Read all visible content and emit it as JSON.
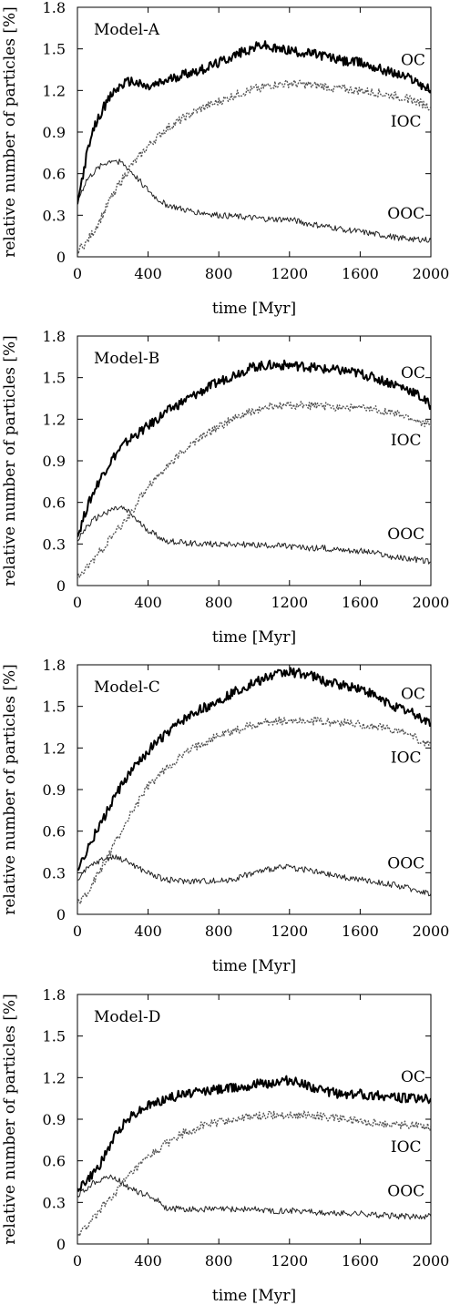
{
  "chart_data": [
    {
      "type": "line",
      "title": "Model-A",
      "xlabel": "time [Myr]",
      "ylabel": "relative number of particles [%]",
      "xlim": [
        0,
        2000
      ],
      "ylim": [
        0,
        1.8
      ],
      "xticks": [
        "0",
        "400",
        "800",
        "1200",
        "1600",
        "2000"
      ],
      "yticks": [
        "0",
        "0.3",
        "0.6",
        "0.9",
        "1.2",
        "1.5",
        "1.8"
      ],
      "grid": false,
      "series": [
        {
          "name": "OC",
          "style": "solid-thick",
          "color": "#000000",
          "x": [
            0,
            50,
            100,
            150,
            200,
            250,
            300,
            400,
            500,
            600,
            700,
            800,
            900,
            1000,
            1050,
            1100,
            1200,
            1300,
            1400,
            1500,
            1600,
            1700,
            1800,
            1900,
            2000
          ],
          "y": [
            0.38,
            0.72,
            0.95,
            1.08,
            1.18,
            1.24,
            1.27,
            1.22,
            1.27,
            1.32,
            1.35,
            1.4,
            1.46,
            1.51,
            1.53,
            1.5,
            1.49,
            1.47,
            1.45,
            1.41,
            1.4,
            1.36,
            1.32,
            1.28,
            1.2
          ]
        },
        {
          "name": "IOC",
          "style": "dotted",
          "color": "#555555",
          "x": [
            0,
            50,
            100,
            150,
            200,
            250,
            300,
            350,
            400,
            500,
            600,
            700,
            800,
            900,
            1000,
            1100,
            1200,
            1300,
            1400,
            1500,
            1600,
            1700,
            1800,
            1900,
            2000
          ],
          "y": [
            0.05,
            0.1,
            0.2,
            0.32,
            0.45,
            0.55,
            0.65,
            0.72,
            0.8,
            0.92,
            1.0,
            1.07,
            1.12,
            1.17,
            1.21,
            1.24,
            1.25,
            1.24,
            1.23,
            1.21,
            1.2,
            1.18,
            1.16,
            1.13,
            1.08
          ]
        },
        {
          "name": "OOC",
          "style": "thin",
          "color": "#222222",
          "x": [
            0,
            50,
            100,
            150,
            200,
            250,
            300,
            350,
            400,
            450,
            500,
            600,
            700,
            800,
            900,
            1000,
            1100,
            1200,
            1300,
            1400,
            1500,
            1600,
            1700,
            1800,
            1900,
            2000
          ],
          "y": [
            0.4,
            0.55,
            0.62,
            0.67,
            0.7,
            0.68,
            0.62,
            0.55,
            0.48,
            0.42,
            0.38,
            0.34,
            0.32,
            0.3,
            0.29,
            0.28,
            0.27,
            0.27,
            0.24,
            0.22,
            0.2,
            0.18,
            0.16,
            0.14,
            0.13,
            0.12
          ]
        }
      ]
    },
    {
      "type": "line",
      "title": "Model-B",
      "xlabel": "time [Myr]",
      "ylabel": "relative number of particles [%]",
      "xlim": [
        0,
        2000
      ],
      "ylim": [
        0,
        1.8
      ],
      "xticks": [
        "0",
        "400",
        "800",
        "1200",
        "1600",
        "2000"
      ],
      "yticks": [
        "0",
        "0.3",
        "0.6",
        "0.9",
        "1.2",
        "1.5",
        "1.8"
      ],
      "grid": false,
      "series": [
        {
          "name": "OC",
          "style": "solid-thick",
          "color": "#000000",
          "x": [
            0,
            50,
            100,
            150,
            200,
            250,
            300,
            400,
            500,
            600,
            700,
            800,
            900,
            1000,
            1100,
            1200,
            1300,
            1400,
            1500,
            1600,
            1700,
            1800,
            1900,
            2000
          ],
          "y": [
            0.35,
            0.55,
            0.7,
            0.82,
            0.92,
            1.0,
            1.06,
            1.15,
            1.25,
            1.33,
            1.4,
            1.47,
            1.53,
            1.58,
            1.59,
            1.59,
            1.58,
            1.56,
            1.55,
            1.53,
            1.49,
            1.45,
            1.4,
            1.3
          ]
        },
        {
          "name": "IOC",
          "style": "dotted",
          "color": "#555555",
          "x": [
            0,
            50,
            100,
            150,
            200,
            250,
            300,
            350,
            400,
            500,
            600,
            700,
            800,
            900,
            1000,
            1100,
            1200,
            1300,
            1400,
            1500,
            1600,
            1700,
            1800,
            1900,
            2000
          ],
          "y": [
            0.05,
            0.12,
            0.2,
            0.28,
            0.36,
            0.43,
            0.52,
            0.62,
            0.72,
            0.85,
            0.97,
            1.07,
            1.15,
            1.21,
            1.26,
            1.29,
            1.3,
            1.3,
            1.29,
            1.29,
            1.28,
            1.27,
            1.24,
            1.2,
            1.15
          ]
        },
        {
          "name": "OOC",
          "style": "thin",
          "color": "#222222",
          "x": [
            0,
            50,
            100,
            150,
            200,
            250,
            300,
            350,
            400,
            450,
            500,
            600,
            700,
            800,
            900,
            1000,
            1100,
            1200,
            1300,
            1400,
            1500,
            1600,
            1700,
            1800,
            1900,
            2000
          ],
          "y": [
            0.32,
            0.42,
            0.48,
            0.52,
            0.55,
            0.56,
            0.52,
            0.45,
            0.4,
            0.36,
            0.32,
            0.31,
            0.3,
            0.3,
            0.3,
            0.29,
            0.29,
            0.28,
            0.27,
            0.27,
            0.26,
            0.25,
            0.23,
            0.2,
            0.19,
            0.17
          ]
        }
      ]
    },
    {
      "type": "line",
      "title": "Model-C",
      "xlabel": "time [Myr]",
      "ylabel": "relative number of particles [%]",
      "xlim": [
        0,
        2000
      ],
      "ylim": [
        0,
        1.8
      ],
      "xticks": [
        "0",
        "400",
        "800",
        "1200",
        "1600",
        "2000"
      ],
      "yticks": [
        "0",
        "0.3",
        "0.6",
        "0.9",
        "1.2",
        "1.5",
        "1.8"
      ],
      "grid": false,
      "series": [
        {
          "name": "OC",
          "style": "solid-thick",
          "color": "#000000",
          "x": [
            0,
            50,
            100,
            150,
            200,
            250,
            300,
            400,
            500,
            600,
            700,
            800,
            900,
            1000,
            1100,
            1200,
            1300,
            1400,
            1500,
            1600,
            1700,
            1800,
            1900,
            2000
          ],
          "y": [
            0.32,
            0.45,
            0.58,
            0.7,
            0.82,
            0.93,
            1.02,
            1.18,
            1.3,
            1.4,
            1.48,
            1.54,
            1.61,
            1.67,
            1.72,
            1.75,
            1.73,
            1.68,
            1.65,
            1.63,
            1.56,
            1.5,
            1.45,
            1.38
          ]
        },
        {
          "name": "IOC",
          "style": "dotted",
          "color": "#555555",
          "x": [
            0,
            50,
            100,
            150,
            200,
            250,
            300,
            350,
            400,
            500,
            600,
            700,
            800,
            900,
            1000,
            1100,
            1200,
            1300,
            1400,
            1500,
            1600,
            1700,
            1800,
            1900,
            2000
          ],
          "y": [
            0.08,
            0.15,
            0.25,
            0.36,
            0.48,
            0.6,
            0.72,
            0.82,
            0.92,
            1.05,
            1.15,
            1.23,
            1.29,
            1.33,
            1.37,
            1.39,
            1.4,
            1.4,
            1.39,
            1.38,
            1.37,
            1.35,
            1.33,
            1.28,
            1.22
          ]
        },
        {
          "name": "OOC",
          "style": "thin",
          "color": "#222222",
          "x": [
            0,
            50,
            100,
            150,
            200,
            250,
            300,
            350,
            400,
            450,
            500,
            600,
            700,
            800,
            900,
            1000,
            1100,
            1200,
            1300,
            1400,
            1500,
            1600,
            1700,
            1800,
            1900,
            2000
          ],
          "y": [
            0.25,
            0.32,
            0.37,
            0.4,
            0.41,
            0.4,
            0.37,
            0.33,
            0.3,
            0.27,
            0.25,
            0.24,
            0.24,
            0.24,
            0.26,
            0.3,
            0.33,
            0.34,
            0.32,
            0.29,
            0.27,
            0.25,
            0.23,
            0.21,
            0.18,
            0.15
          ]
        }
      ]
    },
    {
      "type": "line",
      "title": "Model-D",
      "xlabel": "time [Myr]",
      "ylabel": "relative number of particles [%]",
      "xlim": [
        0,
        2000
      ],
      "ylim": [
        0,
        1.8
      ],
      "xticks": [
        "0",
        "400",
        "800",
        "1200",
        "1600",
        "2000"
      ],
      "yticks": [
        "0",
        "0.3",
        "0.6",
        "0.9",
        "1.2",
        "1.5",
        "1.8"
      ],
      "grid": false,
      "series": [
        {
          "name": "OC",
          "style": "solid-thick",
          "color": "#000000",
          "x": [
            0,
            50,
            100,
            150,
            200,
            250,
            300,
            400,
            500,
            600,
            700,
            800,
            900,
            1000,
            1100,
            1200,
            1300,
            1400,
            1500,
            1600,
            1700,
            1800,
            1900,
            2000
          ],
          "y": [
            0.4,
            0.45,
            0.52,
            0.62,
            0.75,
            0.85,
            0.92,
            1.0,
            1.05,
            1.08,
            1.1,
            1.12,
            1.13,
            1.15,
            1.16,
            1.18,
            1.15,
            1.1,
            1.08,
            1.08,
            1.07,
            1.06,
            1.05,
            1.05
          ]
        },
        {
          "name": "IOC",
          "style": "dotted",
          "color": "#555555",
          "x": [
            0,
            50,
            100,
            150,
            200,
            250,
            300,
            350,
            400,
            500,
            600,
            700,
            800,
            900,
            1000,
            1100,
            1200,
            1300,
            1400,
            1500,
            1600,
            1700,
            1800,
            1900,
            2000
          ],
          "y": [
            0.06,
            0.12,
            0.2,
            0.28,
            0.35,
            0.42,
            0.5,
            0.56,
            0.62,
            0.72,
            0.8,
            0.85,
            0.88,
            0.9,
            0.92,
            0.93,
            0.93,
            0.93,
            0.92,
            0.9,
            0.88,
            0.87,
            0.86,
            0.86,
            0.85
          ]
        },
        {
          "name": "OOC",
          "style": "thin",
          "color": "#222222",
          "x": [
            0,
            50,
            100,
            150,
            200,
            250,
            300,
            350,
            400,
            450,
            500,
            600,
            700,
            800,
            900,
            1000,
            1100,
            1200,
            1300,
            1400,
            1500,
            1600,
            1700,
            1800,
            1900,
            2000
          ],
          "y": [
            0.35,
            0.4,
            0.45,
            0.48,
            0.48,
            0.45,
            0.4,
            0.37,
            0.35,
            0.32,
            0.26,
            0.25,
            0.25,
            0.25,
            0.25,
            0.25,
            0.24,
            0.24,
            0.24,
            0.22,
            0.22,
            0.22,
            0.21,
            0.2,
            0.2,
            0.2
          ]
        }
      ]
    }
  ]
}
